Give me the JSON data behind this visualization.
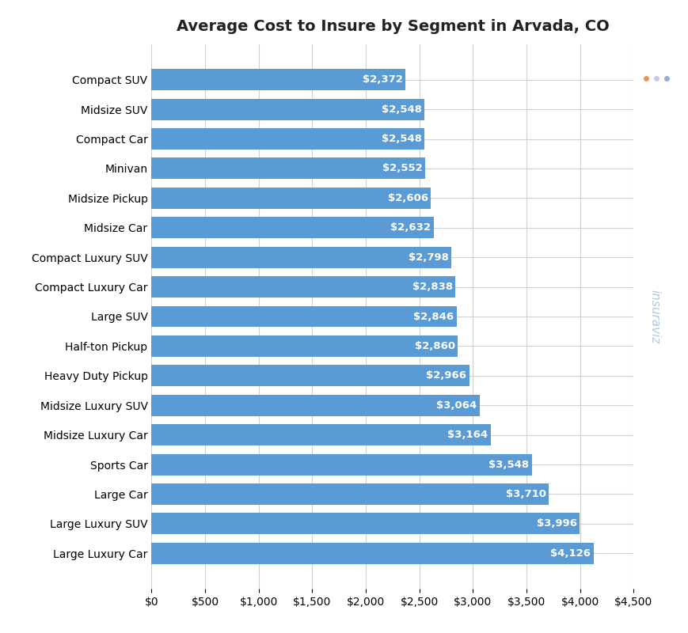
{
  "title": "Average Cost to Insure by Segment in Arvada, CO",
  "categories": [
    "Large Luxury Car",
    "Large Luxury SUV",
    "Large Car",
    "Sports Car",
    "Midsize Luxury Car",
    "Midsize Luxury SUV",
    "Heavy Duty Pickup",
    "Half-ton Pickup",
    "Large SUV",
    "Compact Luxury Car",
    "Compact Luxury SUV",
    "Midsize Car",
    "Midsize Pickup",
    "Minivan",
    "Compact Car",
    "Midsize SUV",
    "Compact SUV"
  ],
  "values": [
    4126,
    3996,
    3710,
    3548,
    3164,
    3064,
    2966,
    2860,
    2846,
    2838,
    2798,
    2632,
    2606,
    2552,
    2548,
    2548,
    2372
  ],
  "bar_color": "#5b9bd5",
  "label_color": "#ffffff",
  "background_color": "#ffffff",
  "grid_color": "#d0d0d0",
  "xlim": [
    0,
    4500
  ],
  "xticks": [
    0,
    500,
    1000,
    1500,
    2000,
    2500,
    3000,
    3500,
    4000,
    4500
  ],
  "title_fontsize": 14,
  "label_fontsize": 9.5,
  "tick_fontsize": 10,
  "bar_height": 0.72,
  "watermark_color_main": "#8ab4d4",
  "watermark_color_dots": "#e8a87c"
}
